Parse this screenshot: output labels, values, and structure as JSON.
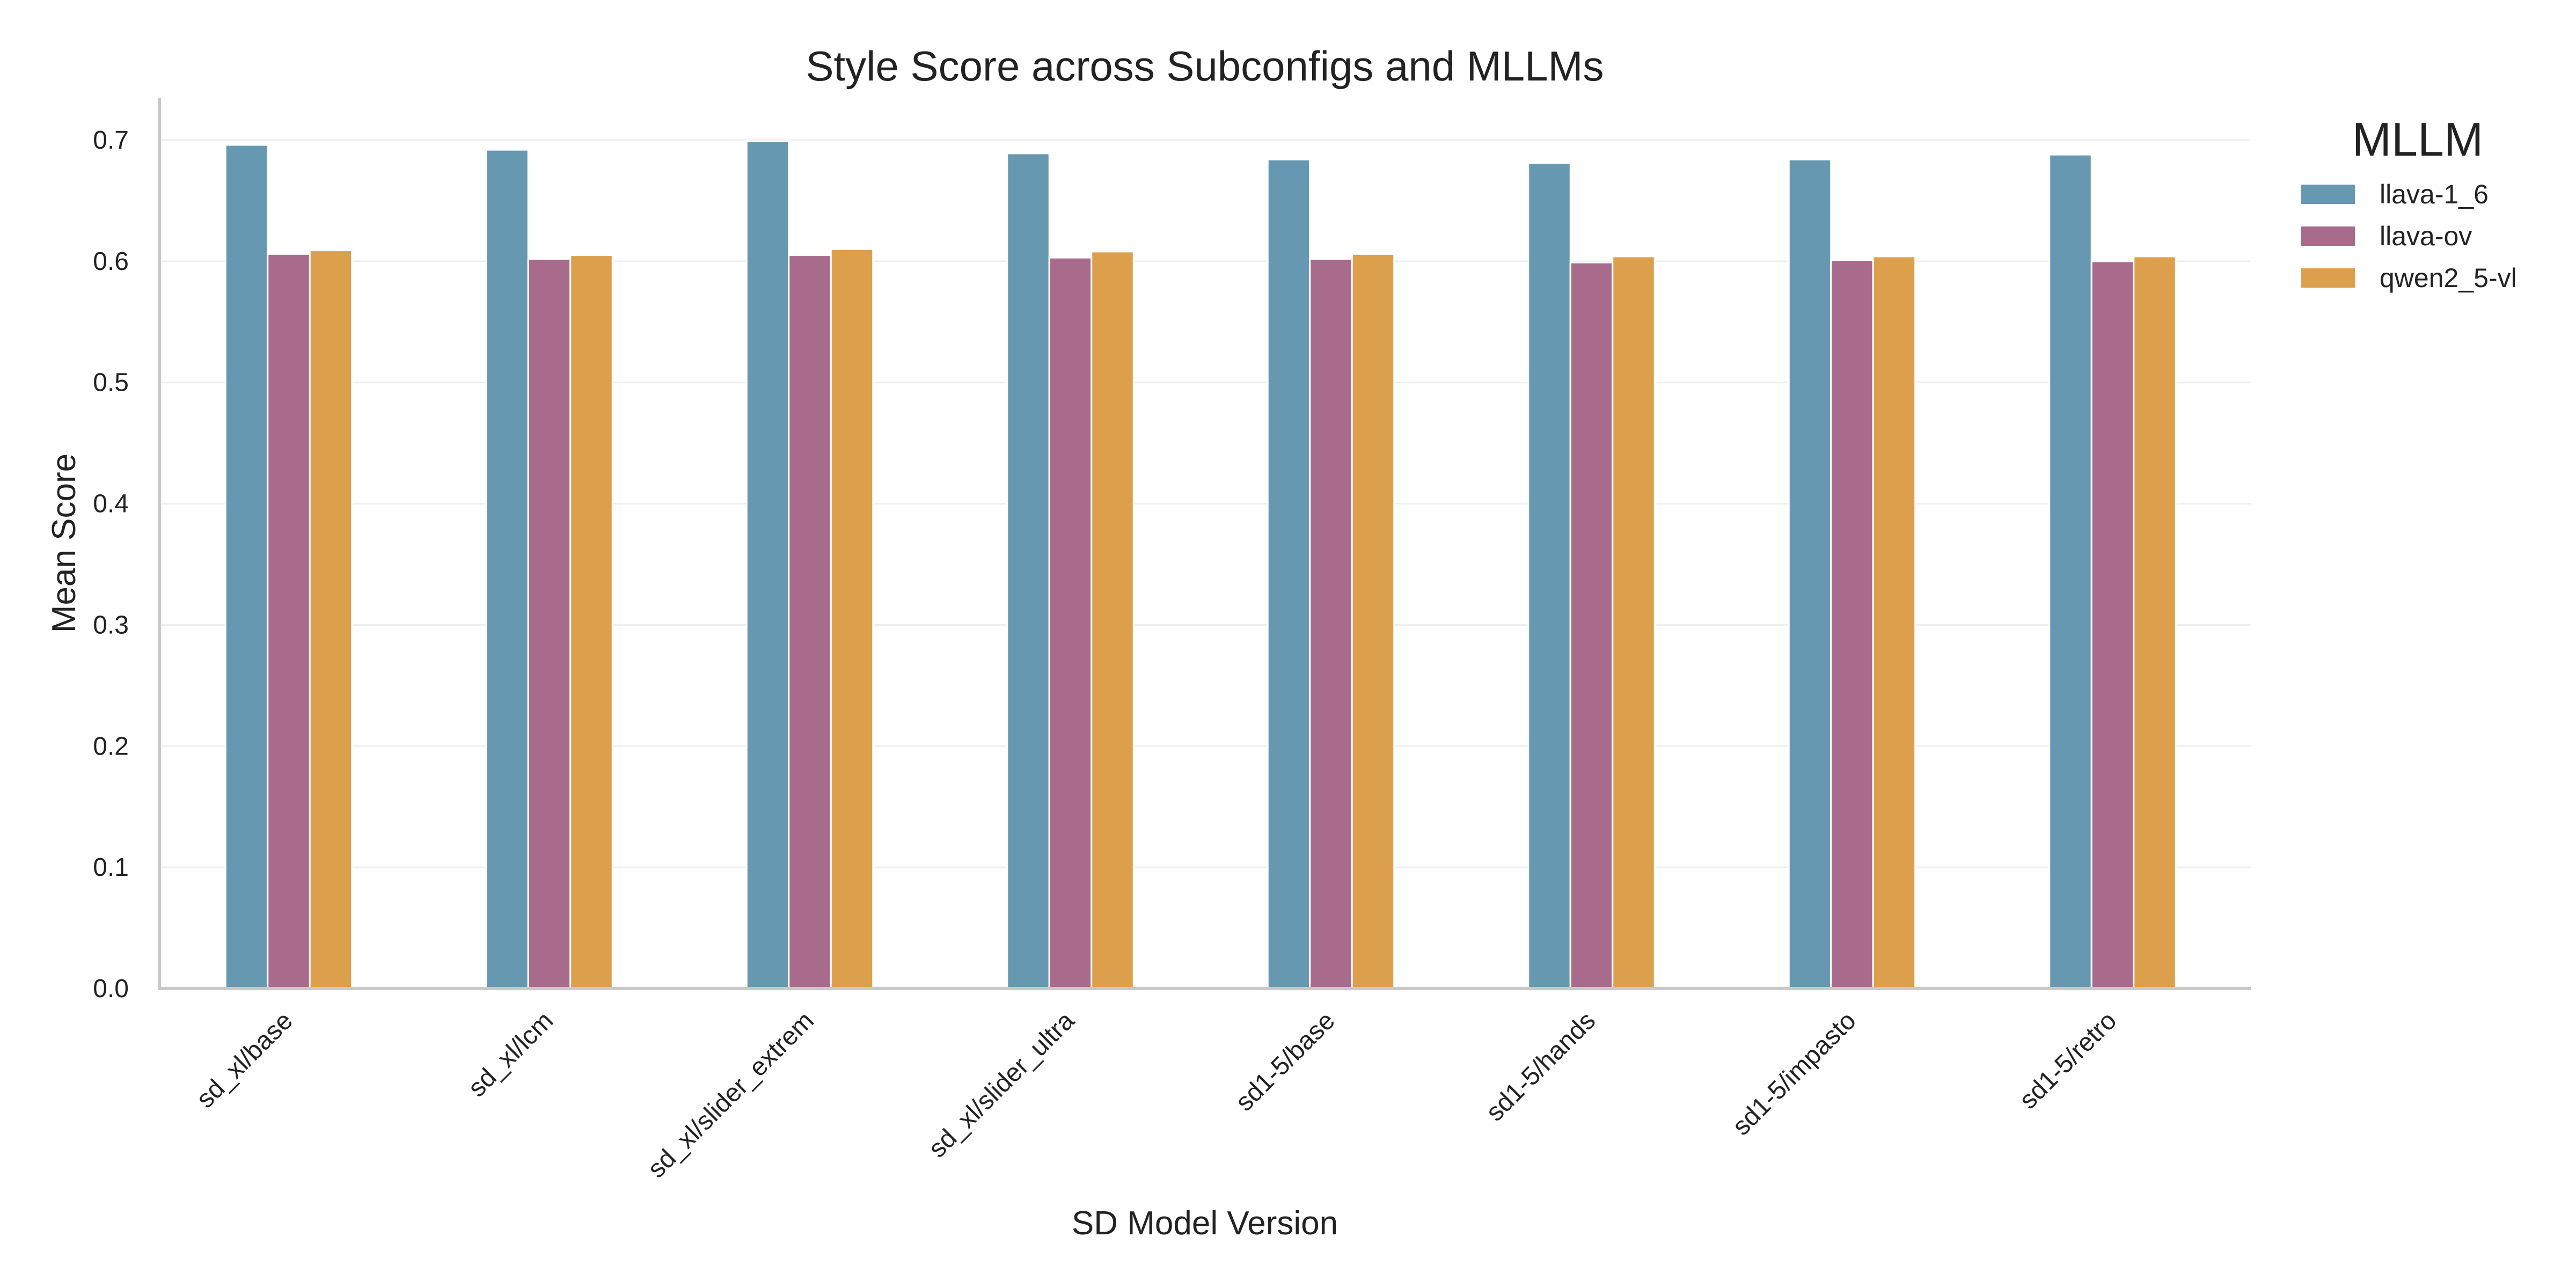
{
  "chart_data": {
    "type": "bar",
    "title": "Style Score across Subconfigs and MLLMs",
    "xlabel": "SD Model Version",
    "ylabel": "Mean Score",
    "ylim": [
      0,
      0.735
    ],
    "yticks": [
      "0.0",
      "0.1",
      "0.2",
      "0.3",
      "0.4",
      "0.5",
      "0.6",
      "0.7"
    ],
    "grid": true,
    "legend": {
      "title": "MLLM",
      "placement": "outside-top-right"
    },
    "categories": [
      "sd_xl/base",
      "sd_xl/lcm",
      "sd_xl/slider_extrem",
      "sd_xl/slider_ultra",
      "sd1-5/base",
      "sd1-5/hands",
      "sd1-5/impasto",
      "sd1-5/retro"
    ],
    "series": [
      {
        "name": "llava-1_6",
        "color": "#6699b1",
        "values": [
          0.696,
          0.692,
          0.699,
          0.689,
          0.684,
          0.681,
          0.684,
          0.688
        ]
      },
      {
        "name": "llava-ov",
        "color": "#a86b8c",
        "values": [
          0.606,
          0.602,
          0.605,
          0.603,
          0.602,
          0.599,
          0.601,
          0.6
        ]
      },
      {
        "name": "qwen2_5-vl",
        "color": "#dca04c",
        "values": [
          0.609,
          0.605,
          0.61,
          0.608,
          0.606,
          0.604,
          0.604,
          0.604
        ]
      }
    ]
  }
}
